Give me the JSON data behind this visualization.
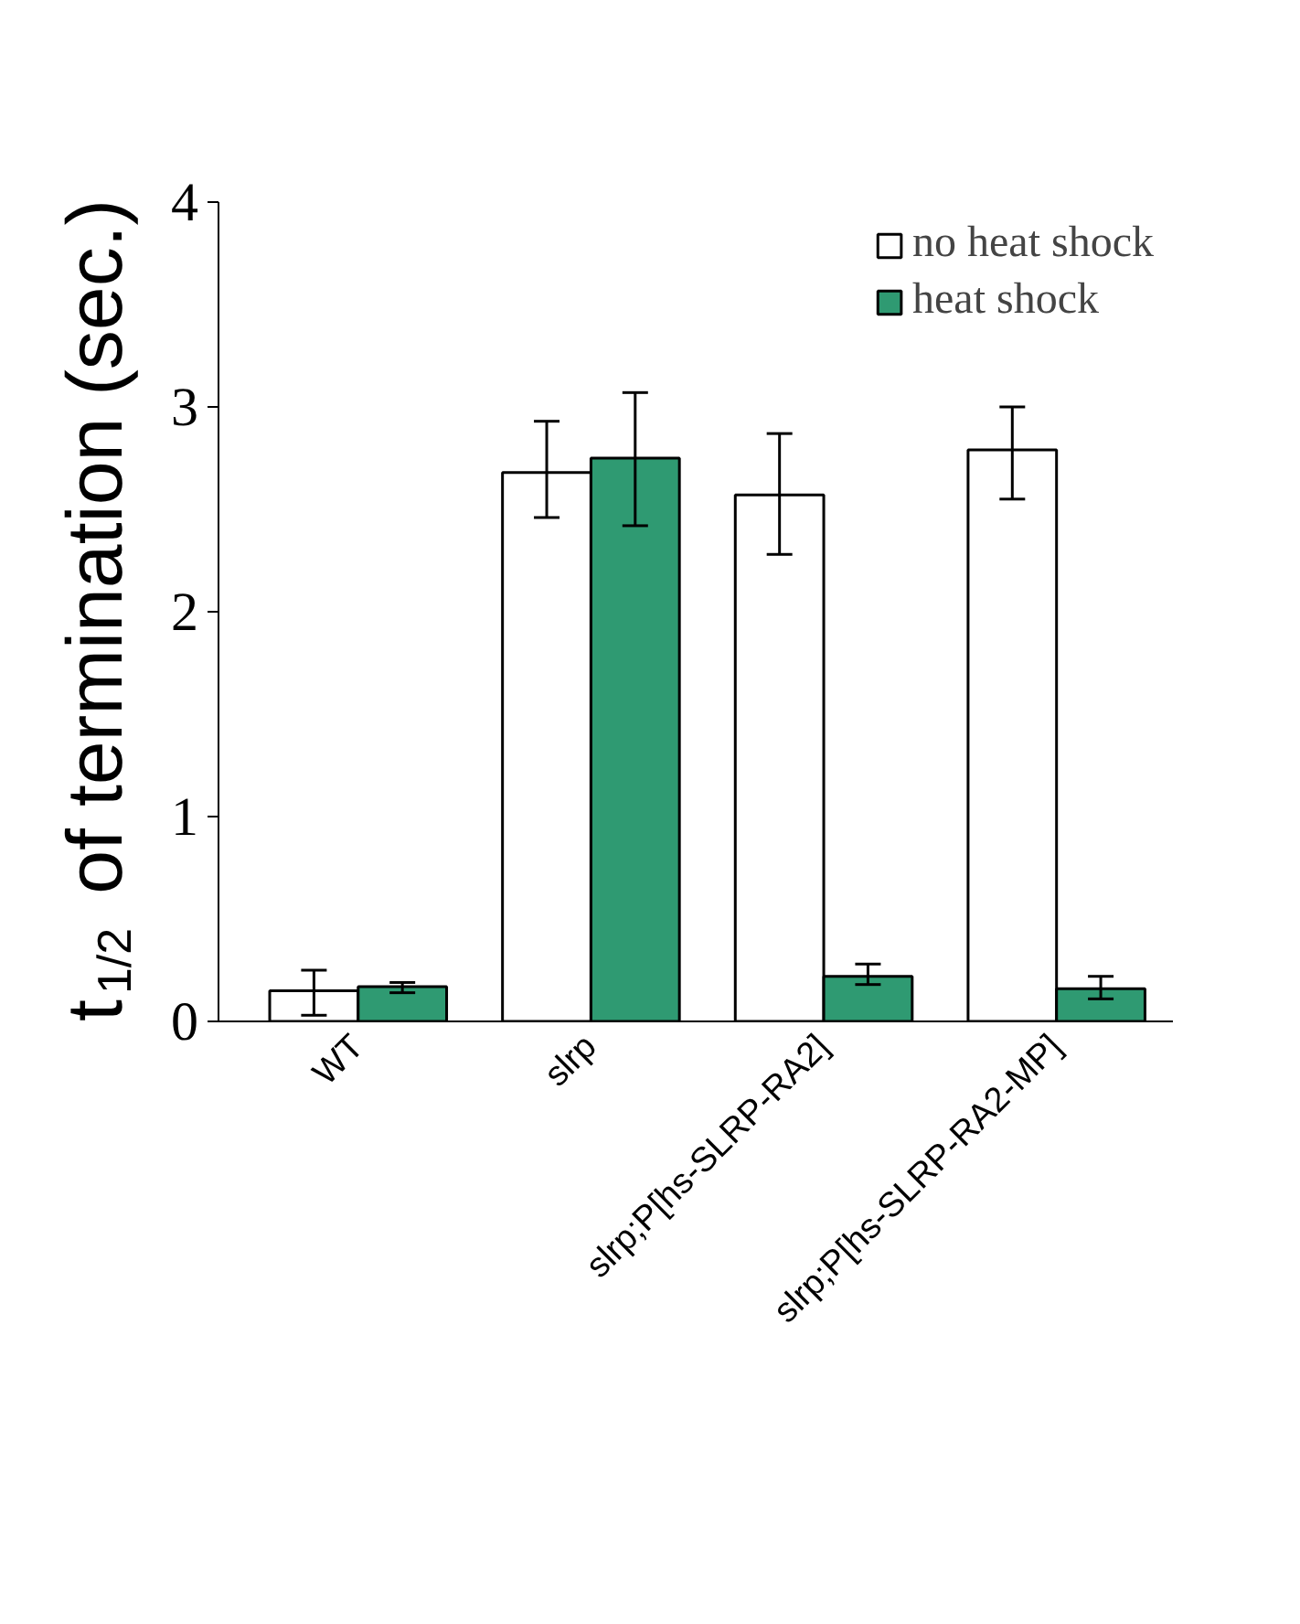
{
  "chart_data": {
    "type": "bar",
    "ylabel": "t$_{1/2}$ of termination (sec.)",
    "categories": [
      "WT",
      "slrp",
      "slrp;P[hs-SLRP-RA2]",
      "slrp;P[hs-SLRP-RA2-MP]"
    ],
    "series": [
      {
        "name": "no heat shock",
        "color": "#ffffff",
        "values": [
          0.15,
          2.68,
          2.57,
          2.79
        ],
        "errors": [
          [
            0.03,
            0.25
          ],
          [
            2.46,
            2.93
          ],
          [
            2.28,
            2.87
          ],
          [
            2.55,
            3.0
          ]
        ]
      },
      {
        "name": "heat shock",
        "color": "#2f9a72",
        "values": [
          0.17,
          2.75,
          0.22,
          0.16
        ],
        "errors": [
          [
            0.14,
            0.19
          ],
          [
            2.42,
            3.07
          ],
          [
            0.18,
            0.28
          ],
          [
            0.11,
            0.22
          ]
        ]
      }
    ],
    "ylim": [
      0,
      4
    ],
    "yticks": [
      0,
      1,
      2,
      3,
      4
    ],
    "grid": false,
    "legend": "top right"
  }
}
